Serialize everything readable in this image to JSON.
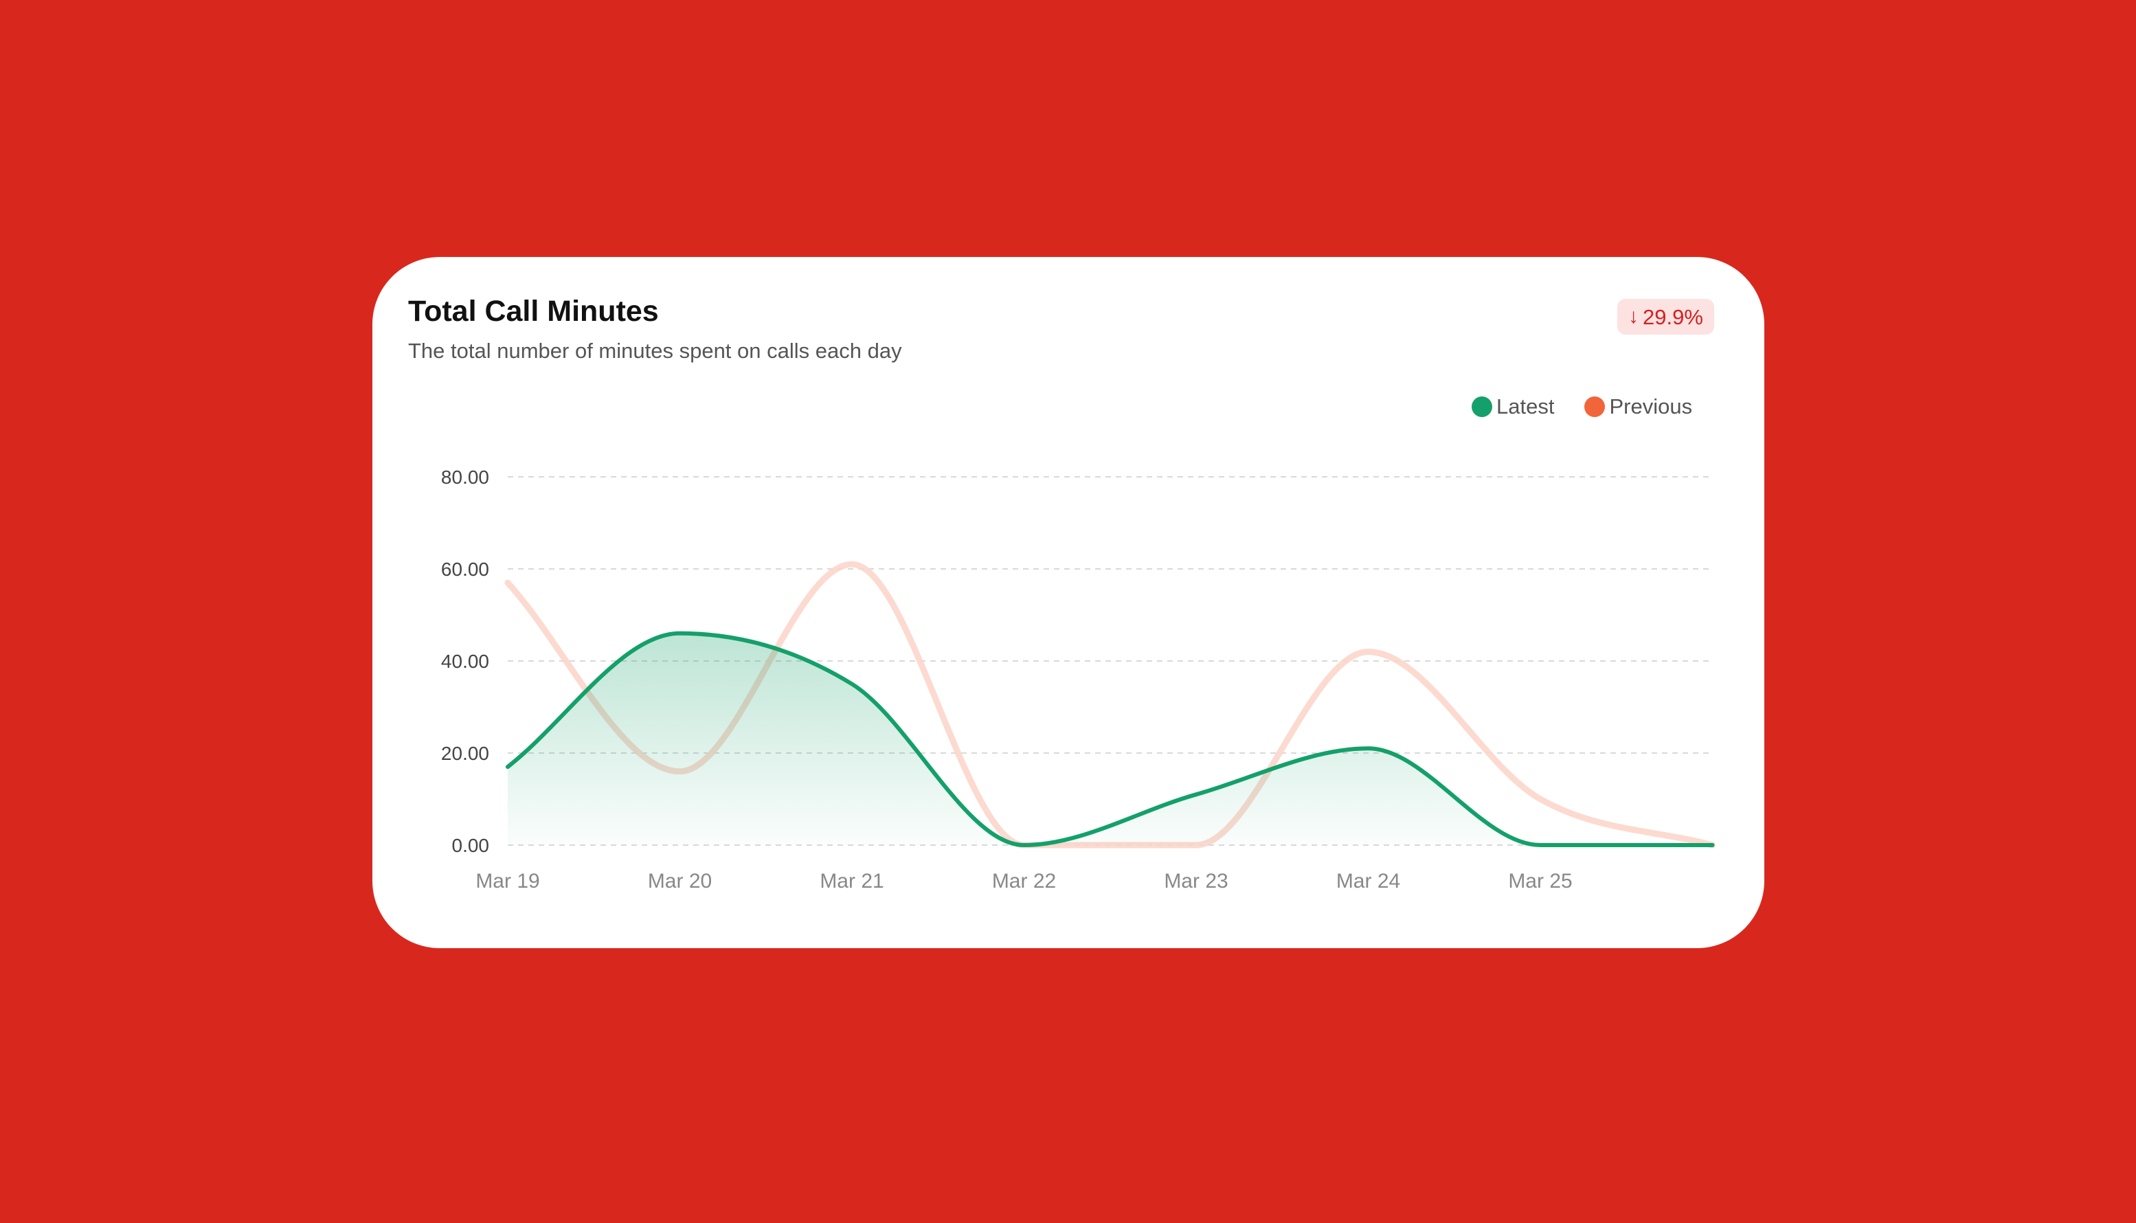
{
  "card": {
    "title": "Total Call Minutes",
    "subtitle": "The total number of minutes spent on calls each day",
    "badge": {
      "icon": "arrow-down-icon",
      "arrow": "↓",
      "value": "29.9%",
      "color": "#d42020",
      "background": "#fde2e2"
    }
  },
  "colors": {
    "page_background": "#d8281e",
    "latest": "#14a06a",
    "previous": "#f2643a",
    "previous_line": "#fbd3c8"
  },
  "chart_data": {
    "type": "area",
    "title": "Total Call Minutes",
    "subtitle": "The total number of minutes spent on calls each day",
    "categories": [
      "Mar 19",
      "Mar 20",
      "Mar 21",
      "Mar 22",
      "Mar 23",
      "Mar 24",
      "Mar 25",
      ""
    ],
    "x_tick_labels": [
      "Mar 19",
      "Mar 20",
      "Mar 21",
      "Mar 22",
      "Mar 23",
      "Mar 24",
      "Mar 25"
    ],
    "y_tick_labels": [
      "0.00",
      "20.00",
      "40.00",
      "60.00",
      "80.00"
    ],
    "y_ticks": [
      0,
      20,
      40,
      60,
      80
    ],
    "ylim": [
      0,
      80
    ],
    "grid": true,
    "grid_style": "dashed",
    "legend_position": "top-right",
    "series": [
      {
        "name": "Latest",
        "color": "#14a06a",
        "style": "line with gradient area fill",
        "values": [
          17,
          46,
          35,
          0,
          11,
          21,
          0,
          0
        ]
      },
      {
        "name": "Previous",
        "color": "#f2643a",
        "style": "faded line",
        "values": [
          57,
          16,
          61,
          0,
          0,
          42,
          10,
          0
        ]
      }
    ]
  }
}
